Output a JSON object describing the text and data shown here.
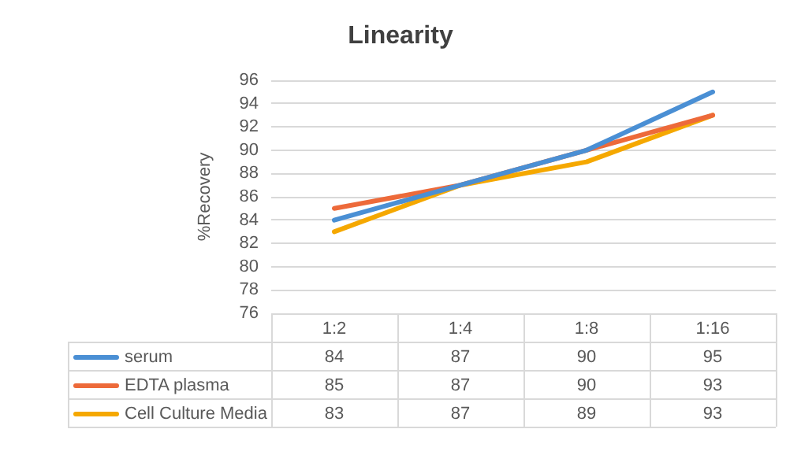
{
  "chart_data": {
    "type": "line",
    "title": "Linearity",
    "ylabel": "%Recovery",
    "categories": [
      "1:2",
      "1:4",
      "1:8",
      "1:16"
    ],
    "series": [
      {
        "name": "serum",
        "color": "#4a8fd4",
        "values": [
          84,
          87,
          90,
          95
        ]
      },
      {
        "name": "EDTA plasma",
        "color": "#ed6a3a",
        "values": [
          85,
          87,
          90,
          93
        ]
      },
      {
        "name": "Cell Culture Media",
        "color": "#f5a800",
        "values": [
          83,
          87,
          89,
          93
        ]
      }
    ],
    "ylim": [
      76,
      96
    ],
    "yticks": [
      76,
      78,
      80,
      82,
      84,
      86,
      88,
      90,
      92,
      94,
      96
    ],
    "grid": "y",
    "legend": "bottom",
    "data_labels": true,
    "marker": "none",
    "line_style": "solid"
  }
}
